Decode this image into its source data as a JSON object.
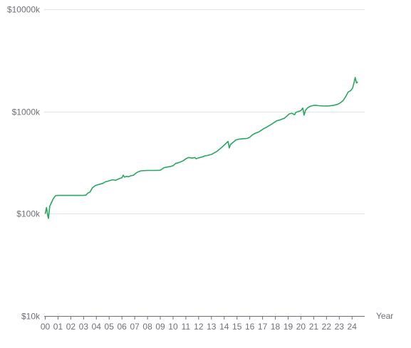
{
  "chart_data": {
    "type": "line",
    "xlabel": "Year",
    "ylabel": "",
    "y_scale": "log",
    "ylim": [
      10,
      10000
    ],
    "y_tick_values": [
      10,
      100,
      1000,
      10000
    ],
    "y_tick_labels": [
      "$10k",
      "$100k",
      "$1000k",
      "$10000k"
    ],
    "xlim": [
      2000.0,
      2024.6
    ],
    "x_tick_values": [
      2000,
      2001,
      2002,
      2003,
      2004,
      2005,
      2006,
      2007,
      2008,
      2009,
      2010,
      2011,
      2012,
      2013,
      2014,
      2015,
      2016,
      2017,
      2018,
      2019,
      2020,
      2021,
      2022,
      2023,
      2024
    ],
    "x_tick_labels": [
      "00",
      "01",
      "02",
      "03",
      "04",
      "05",
      "06",
      "07",
      "08",
      "09",
      "10",
      "11",
      "12",
      "13",
      "14",
      "15",
      "16",
      "17",
      "18",
      "19",
      "20",
      "21",
      "22",
      "23",
      "24"
    ],
    "grid": true,
    "line_color": "#27a85f",
    "series": [
      {
        "values": [
          [
            2000.0,
            100
          ],
          [
            2000.1,
            115
          ],
          [
            2000.2,
            95
          ],
          [
            2000.25,
            90
          ],
          [
            2000.35,
            118
          ],
          [
            2000.5,
            130
          ],
          [
            2000.65,
            142
          ],
          [
            2000.8,
            150
          ],
          [
            2001.0,
            151
          ],
          [
            2001.5,
            151
          ],
          [
            2002.0,
            151
          ],
          [
            2002.5,
            151
          ],
          [
            2003.0,
            151
          ],
          [
            2003.2,
            152
          ],
          [
            2003.3,
            158
          ],
          [
            2003.5,
            163
          ],
          [
            2003.7,
            180
          ],
          [
            2003.9,
            188
          ],
          [
            2004.1,
            192
          ],
          [
            2004.3,
            195
          ],
          [
            2004.5,
            198
          ],
          [
            2004.7,
            205
          ],
          [
            2004.9,
            208
          ],
          [
            2005.1,
            212
          ],
          [
            2005.3,
            215
          ],
          [
            2005.5,
            212
          ],
          [
            2005.7,
            218
          ],
          [
            2005.85,
            222
          ],
          [
            2006.0,
            225
          ],
          [
            2006.1,
            238
          ],
          [
            2006.2,
            228
          ],
          [
            2006.35,
            232
          ],
          [
            2006.5,
            230
          ],
          [
            2006.7,
            235
          ],
          [
            2006.9,
            238
          ],
          [
            2007.1,
            250
          ],
          [
            2007.3,
            258
          ],
          [
            2007.5,
            263
          ],
          [
            2008.0,
            265
          ],
          [
            2008.5,
            265
          ],
          [
            2009.0,
            266
          ],
          [
            2009.1,
            272
          ],
          [
            2009.3,
            282
          ],
          [
            2009.5,
            286
          ],
          [
            2009.8,
            290
          ],
          [
            2010.0,
            295
          ],
          [
            2010.2,
            310
          ],
          [
            2010.5,
            318
          ],
          [
            2010.8,
            330
          ],
          [
            2011.0,
            345
          ],
          [
            2011.2,
            355
          ],
          [
            2011.5,
            350
          ],
          [
            2011.7,
            355
          ],
          [
            2011.8,
            345
          ],
          [
            2012.0,
            352
          ],
          [
            2012.3,
            360
          ],
          [
            2012.5,
            368
          ],
          [
            2012.7,
            372
          ],
          [
            2013.0,
            380
          ],
          [
            2013.2,
            392
          ],
          [
            2013.4,
            405
          ],
          [
            2013.6,
            425
          ],
          [
            2013.8,
            445
          ],
          [
            2014.0,
            470
          ],
          [
            2014.2,
            495
          ],
          [
            2014.3,
            510
          ],
          [
            2014.4,
            440
          ],
          [
            2014.5,
            475
          ],
          [
            2014.7,
            500
          ],
          [
            2014.9,
            525
          ],
          [
            2015.1,
            535
          ],
          [
            2015.4,
            540
          ],
          [
            2015.8,
            545
          ],
          [
            2016.0,
            560
          ],
          [
            2016.2,
            590
          ],
          [
            2016.4,
            610
          ],
          [
            2016.7,
            630
          ],
          [
            2016.9,
            655
          ],
          [
            2017.1,
            680
          ],
          [
            2017.3,
            700
          ],
          [
            2017.5,
            725
          ],
          [
            2017.7,
            750
          ],
          [
            2017.9,
            780
          ],
          [
            2018.1,
            810
          ],
          [
            2018.4,
            830
          ],
          [
            2018.7,
            860
          ],
          [
            2018.9,
            900
          ],
          [
            2019.1,
            950
          ],
          [
            2019.3,
            960
          ],
          [
            2019.5,
            930
          ],
          [
            2019.6,
            980
          ],
          [
            2019.8,
            1000
          ],
          [
            2020.0,
            1020
          ],
          [
            2020.15,
            1080
          ],
          [
            2020.25,
            920
          ],
          [
            2020.35,
            1020
          ],
          [
            2020.5,
            1080
          ],
          [
            2020.7,
            1120
          ],
          [
            2020.9,
            1140
          ],
          [
            2021.1,
            1150
          ],
          [
            2021.4,
            1140
          ],
          [
            2021.8,
            1130
          ],
          [
            2022.2,
            1135
          ],
          [
            2022.6,
            1150
          ],
          [
            2022.9,
            1180
          ],
          [
            2023.1,
            1220
          ],
          [
            2023.3,
            1280
          ],
          [
            2023.5,
            1400
          ],
          [
            2023.7,
            1550
          ],
          [
            2023.9,
            1600
          ],
          [
            2024.05,
            1700
          ],
          [
            2024.15,
            1900
          ],
          [
            2024.25,
            2150
          ],
          [
            2024.35,
            1900
          ],
          [
            2024.45,
            1950
          ]
        ]
      }
    ]
  }
}
